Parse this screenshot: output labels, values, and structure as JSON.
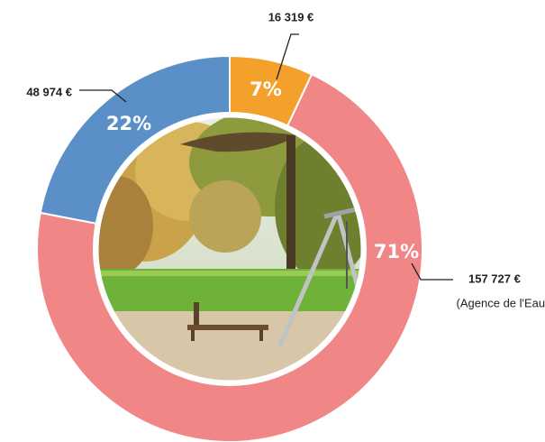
{
  "chart_data": {
    "type": "donut",
    "values": [
      7,
      71,
      22
    ],
    "value_labels": [
      "7%",
      "71%",
      "22%"
    ],
    "colors": [
      "#f4a12b",
      "#f08686",
      "#5b8fc8"
    ],
    "amount_labels": [
      "16 319 €",
      "157 727 €",
      "48 974 €"
    ],
    "annotation": "(Agence de l'Eau)"
  }
}
